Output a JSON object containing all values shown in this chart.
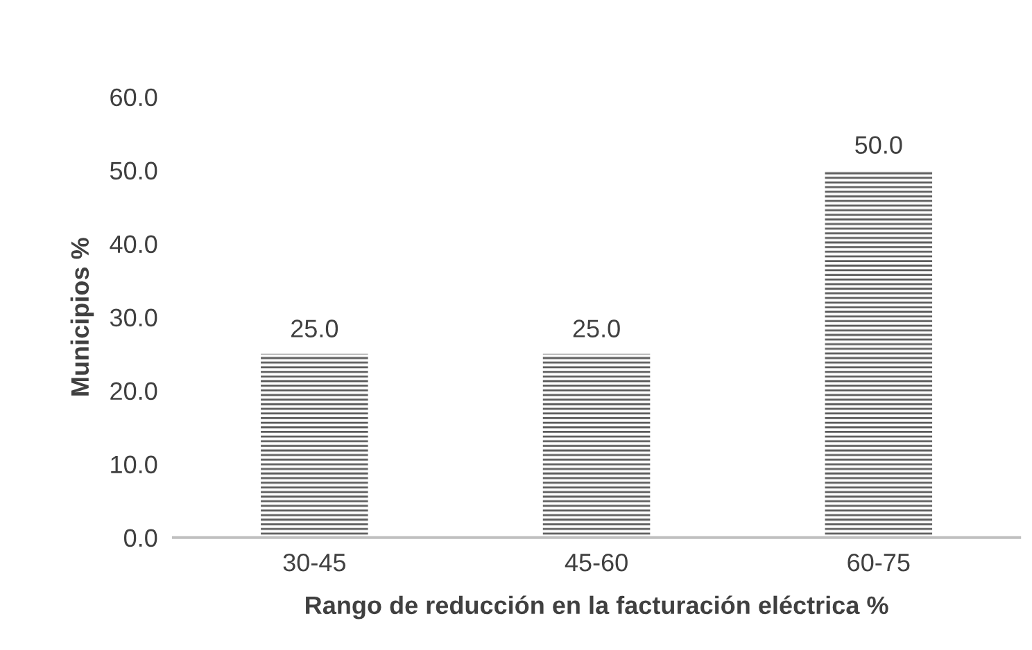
{
  "chart_data": {
    "type": "bar",
    "xlabel": "Rango de reducción en la facturación eléctrica %",
    "ylabel": "Municipios %",
    "categories": [
      "30-45",
      "45-60",
      "60-75"
    ],
    "values": [
      25,
      25,
      50
    ],
    "value_labels": [
      "25.0",
      "25.0",
      "50.0"
    ],
    "color": "#595959",
    "ylim": [
      0,
      60
    ],
    "yticks": [
      {
        "value": 0,
        "label": "0.0"
      },
      {
        "value": 10,
        "label": "10.0"
      },
      {
        "value": 20,
        "label": "20.0"
      },
      {
        "value": 30,
        "label": "30.0"
      },
      {
        "value": 40,
        "label": "40.0"
      },
      {
        "value": 50,
        "label": "50.0"
      },
      {
        "value": 60,
        "label": "60.0"
      }
    ],
    "grid": false,
    "legend": false
  }
}
